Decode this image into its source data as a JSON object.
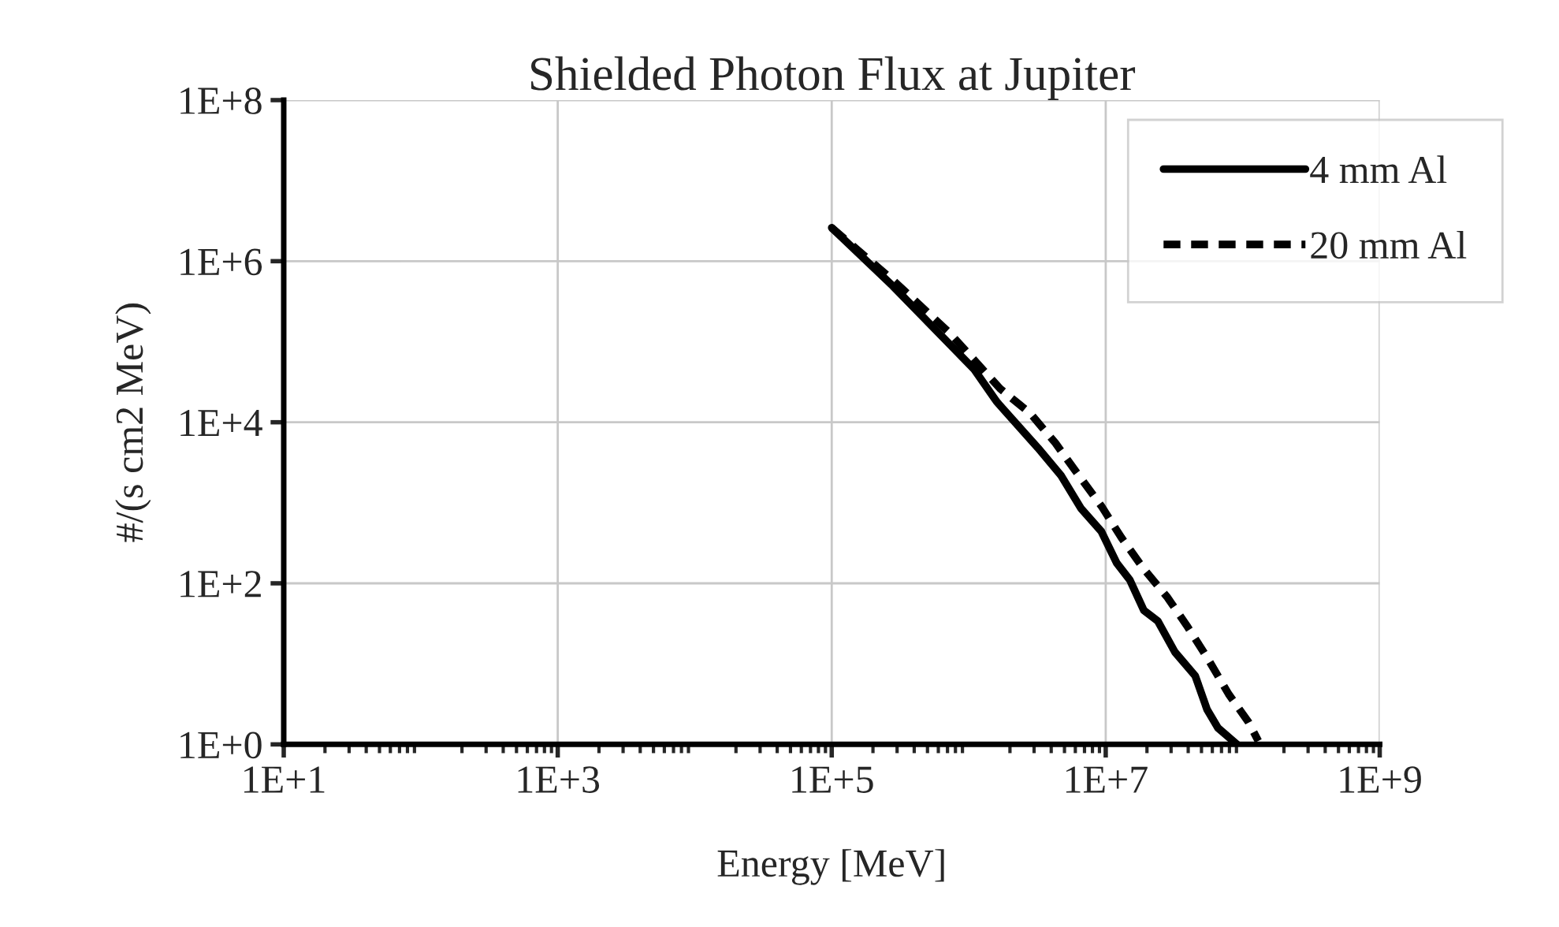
{
  "chart_data": {
    "type": "line",
    "title": "Shielded Photon Flux at Jupiter",
    "xlabel": "Energy [MeV]",
    "ylabel": "#/(s cm2 MeV)",
    "log": "xy",
    "grid": true,
    "legend": "top right",
    "xlim": [
      10,
      1000000000.0
    ],
    "xticks": [
      {
        "value": 10,
        "label": "1E+1"
      },
      {
        "value": 1000,
        "label": "1E+3"
      },
      {
        "value": 100000,
        "label": "1E+5"
      },
      {
        "value": 10000000,
        "label": "1E+7"
      },
      {
        "value": 1000000000,
        "label": "1E+9"
      }
    ],
    "ylim": [
      1,
      100000000.0
    ],
    "yticks": [
      {
        "value": 1,
        "label": "1E+0"
      },
      {
        "value": 100,
        "label": "1E+2"
      },
      {
        "value": 10000,
        "label": "1E+4"
      },
      {
        "value": 1000000,
        "label": "1E+6"
      },
      {
        "value": 100000000,
        "label": "1E+8"
      }
    ],
    "series": [
      {
        "name": "4 mm Al",
        "color": "#000000",
        "line_style": "solid",
        "x": [
          100000.0,
          280000.0,
          660000.0,
          1100000.0,
          1600000.0,
          3200000.0,
          4700000.0,
          6600000.0,
          9300000.0,
          12000000.0,
          15000000.0,
          19000000.0,
          24000000.0,
          32000000.0,
          45000000.0,
          55000000.0,
          66000000.0,
          91000000.0
        ],
        "values": [
          2600000.0,
          490000.0,
          110000.0,
          45000.0,
          18000.0,
          4800.0,
          2200.0,
          850,
          440,
          180,
          110,
          46,
          34,
          14,
          7.1,
          2.7,
          1.6,
          1.0
        ]
      },
      {
        "name": "20 mm Al",
        "color": "#000000",
        "line_style": "dashed",
        "x": [
          100000.0,
          280000.0,
          720000.0,
          1700000.0,
          2800000.0,
          4300000.0,
          6000000.0,
          9300000.0,
          13000000.0,
          19000000.0,
          28000000.0,
          39000000.0,
          55000000.0,
          79000000.0,
          110000000.0,
          130000000.0
        ],
        "values": [
          2600000.0,
          580000.0,
          130000.0,
          26000.0,
          13000.0,
          5500.0,
          2500.0,
          910,
          370,
          150,
          68,
          30,
          12,
          4.2,
          1.9,
          1.1
        ]
      }
    ]
  }
}
